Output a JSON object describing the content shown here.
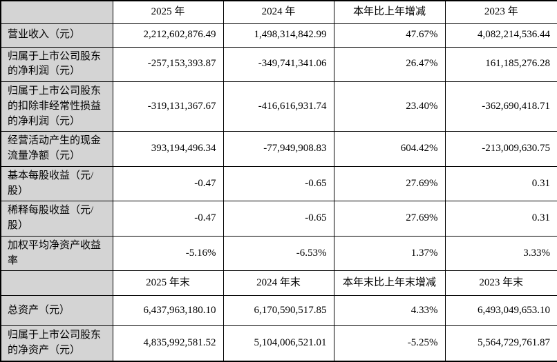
{
  "colors": {
    "label_bg": "#d4d4d4",
    "border": "#000000",
    "cell_bg": "#ffffff",
    "text": "#000000"
  },
  "table": {
    "sections": [
      {
        "header": [
          "",
          "2025 年",
          "2024 年",
          "本年比上年增减",
          "2023 年"
        ],
        "rows": [
          {
            "label": "营业收入（元）",
            "values": [
              "2,212,602,876.49",
              "1,498,314,842.99",
              "47.67%",
              "4,082,214,536.44"
            ]
          },
          {
            "label": "归属于上市公司股东的净利润（元）",
            "values": [
              "-257,153,393.87",
              "-349,741,341.06",
              "26.47%",
              "161,185,276.28"
            ]
          },
          {
            "label": "归属于上市公司股东的扣除非经常性损益的净利润（元）",
            "values": [
              "-319,131,367.67",
              "-416,616,931.74",
              "23.40%",
              "-362,690,418.71"
            ]
          },
          {
            "label": "经营活动产生的现金流量净额（元）",
            "values": [
              "393,194,496.34",
              "-77,949,908.83",
              "604.42%",
              "-213,009,630.75"
            ]
          },
          {
            "label": "基本每股收益（元/股）",
            "values": [
              "-0.47",
              "-0.65",
              "27.69%",
              "0.31"
            ]
          },
          {
            "label": "稀释每股收益（元/股）",
            "values": [
              "-0.47",
              "-0.65",
              "27.69%",
              "0.31"
            ]
          },
          {
            "label": "加权平均净资产收益率",
            "values": [
              "-5.16%",
              "-6.53%",
              "1.37%",
              "3.33%"
            ]
          }
        ]
      },
      {
        "header": [
          "",
          "2025 年末",
          "2024 年末",
          "本年末比上年末增减",
          "2023 年末"
        ],
        "rows": [
          {
            "label": "总资产（元）",
            "values": [
              "6,437,963,180.10",
              "6,170,590,517.85",
              "4.33%",
              "6,493,049,653.10"
            ]
          },
          {
            "label": "归属于上市公司股东的净资产（元）",
            "values": [
              "4,835,992,581.52",
              "5,104,006,521.01",
              "-5.25%",
              "5,564,729,761.87"
            ]
          }
        ]
      }
    ]
  }
}
